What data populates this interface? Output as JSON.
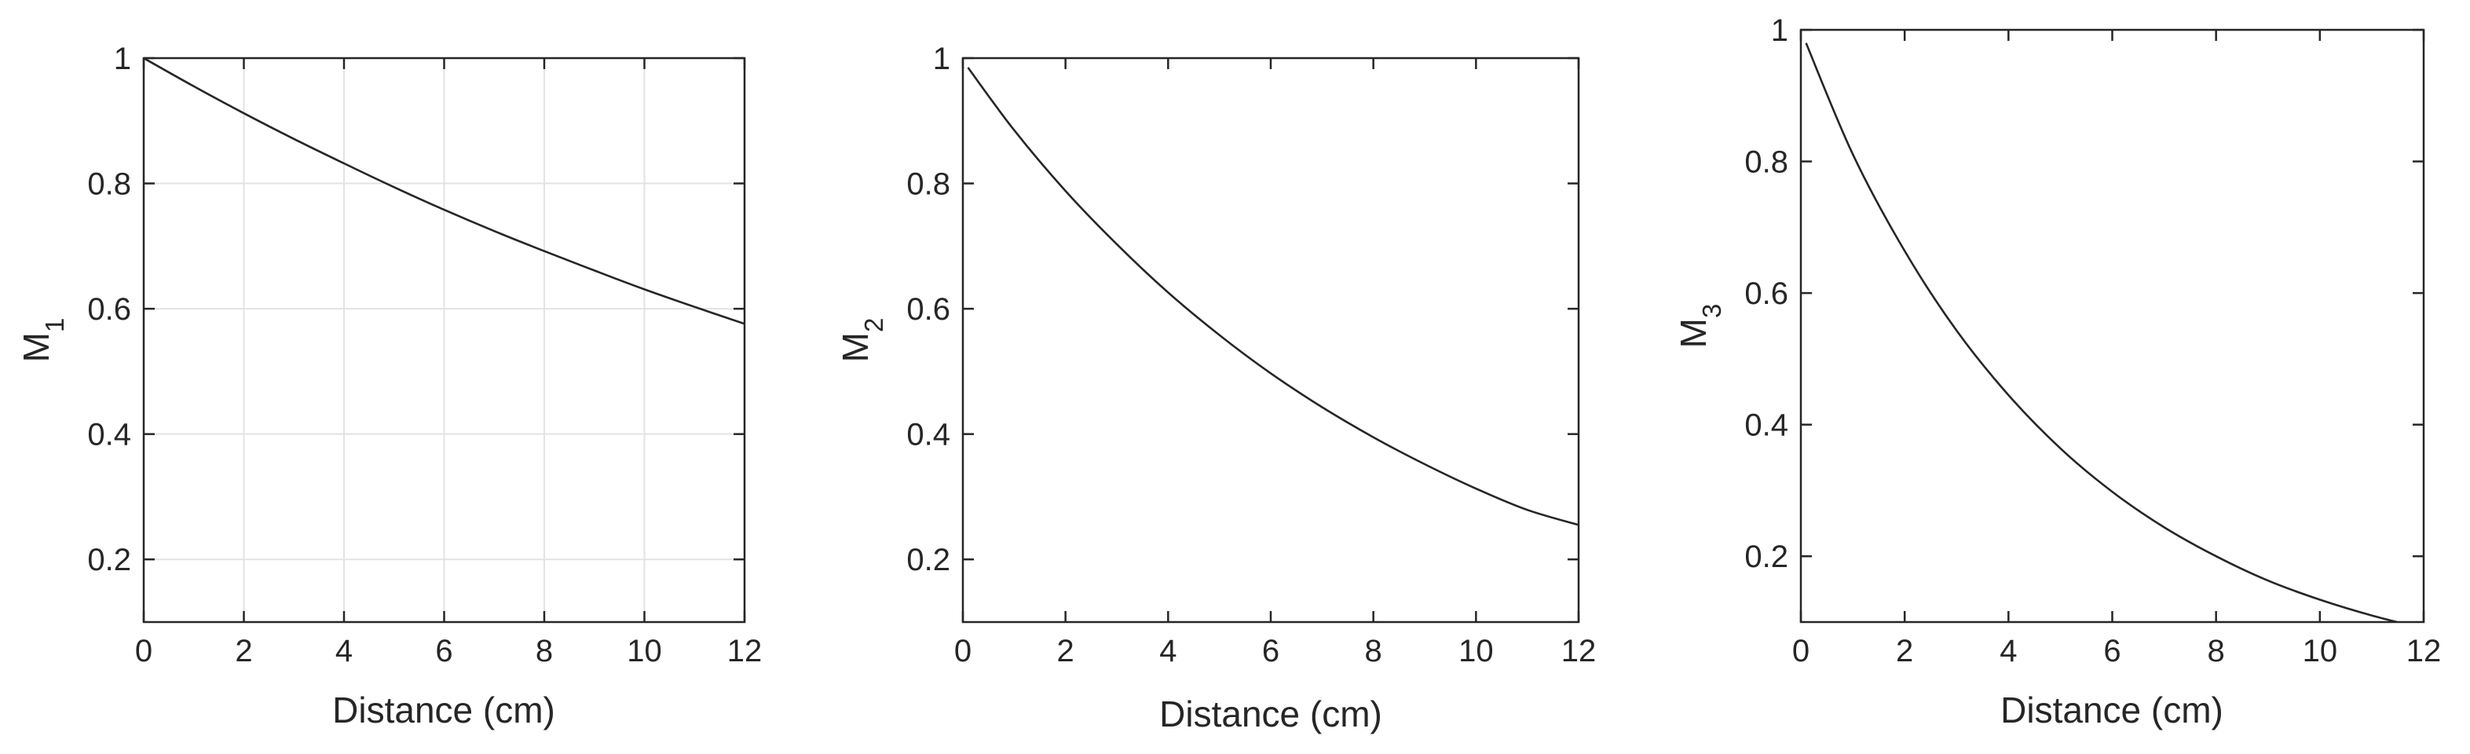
{
  "chart_data": [
    {
      "type": "line",
      "xlabel": "Distance (cm)",
      "ylabel": "M",
      "ylabel_subscript": "1",
      "xlim": [
        0,
        12
      ],
      "ylim": [
        0.1,
        1
      ],
      "xticks": [
        "0",
        "2",
        "4",
        "6",
        "8",
        "10",
        "12"
      ],
      "yticks": [
        "0.2",
        "0.4",
        "0.6",
        "0.8",
        "1"
      ],
      "xtick_values": [
        0,
        2,
        4,
        6,
        8,
        10,
        12
      ],
      "ytick_values": [
        0.2,
        0.4,
        0.6,
        0.8,
        1
      ],
      "grid": true,
      "line_color": "#262626",
      "series": [
        {
          "x": [
            0,
            1,
            2,
            3,
            4,
            5,
            6,
            7,
            8,
            9,
            10,
            11,
            12
          ],
          "y": [
            1.0,
            0.955,
            0.912,
            0.871,
            0.832,
            0.794,
            0.758,
            0.724,
            0.692,
            0.661,
            0.631,
            0.603,
            0.576
          ]
        }
      ]
    },
    {
      "type": "line",
      "xlabel": "Distance (cm)",
      "ylabel": "M",
      "ylabel_subscript": "2",
      "xlim": [
        0,
        12
      ],
      "ylim": [
        0.1,
        1
      ],
      "xticks": [
        "0",
        "2",
        "4",
        "6",
        "8",
        "10",
        "12"
      ],
      "yticks": [
        "0.2",
        "0.4",
        "0.6",
        "0.8",
        "1"
      ],
      "xtick_values": [
        0,
        2,
        4,
        6,
        8,
        10,
        12
      ],
      "ytick_values": [
        0.2,
        0.4,
        0.6,
        0.8,
        1
      ],
      "grid": false,
      "line_color": "#262626",
      "series": [
        {
          "x": [
            0.1,
            1,
            2,
            3,
            4,
            5,
            6,
            7,
            8,
            9,
            10,
            11,
            12
          ],
          "y": [
            0.985,
            0.885,
            0.788,
            0.703,
            0.626,
            0.558,
            0.497,
            0.443,
            0.395,
            0.352,
            0.313,
            0.279,
            0.255
          ]
        }
      ]
    },
    {
      "type": "line",
      "xlabel": "Distance (cm)",
      "ylabel": "M",
      "ylabel_subscript": "3",
      "xlim": [
        0,
        12
      ],
      "ylim": [
        0.1,
        1
      ],
      "xticks": [
        "0",
        "2",
        "4",
        "6",
        "8",
        "10",
        "12"
      ],
      "yticks": [
        "0.2",
        "0.4",
        "0.6",
        "0.8",
        "1"
      ],
      "xtick_values": [
        0,
        2,
        4,
        6,
        8,
        10,
        12
      ],
      "ytick_values": [
        0.2,
        0.4,
        0.6,
        0.8,
        1
      ],
      "grid": false,
      "line_color": "#262626",
      "series": [
        {
          "x": [
            0.1,
            1,
            2,
            3,
            4,
            5,
            6,
            7,
            8,
            9,
            10,
            11,
            12
          ],
          "y": [
            0.98,
            0.811,
            0.664,
            0.543,
            0.445,
            0.364,
            0.298,
            0.244,
            0.2,
            0.163,
            0.134,
            0.11,
            0.09
          ]
        }
      ]
    }
  ]
}
